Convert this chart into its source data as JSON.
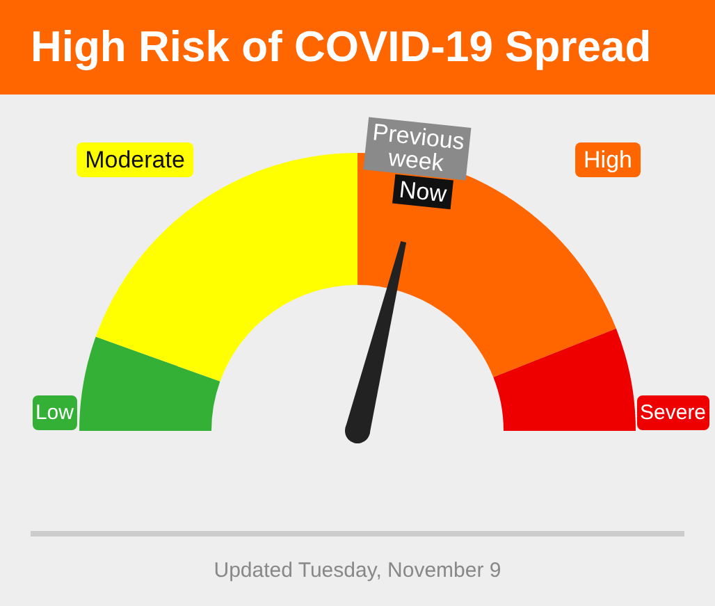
{
  "chart_data": {
    "type": "donut",
    "title": "High Risk of COVID-19 Spread",
    "categories": [
      "Low",
      "Moderate",
      "High",
      "Severe"
    ],
    "values": [
      11,
      39,
      38,
      12
    ],
    "colors": [
      "#33b035",
      "#ffff00",
      "#ff6600",
      "#ee0000"
    ],
    "needle": "High",
    "annotations": [
      "Previous week",
      "Now",
      "Updated Tuesday, November 9"
    ]
  }
}
